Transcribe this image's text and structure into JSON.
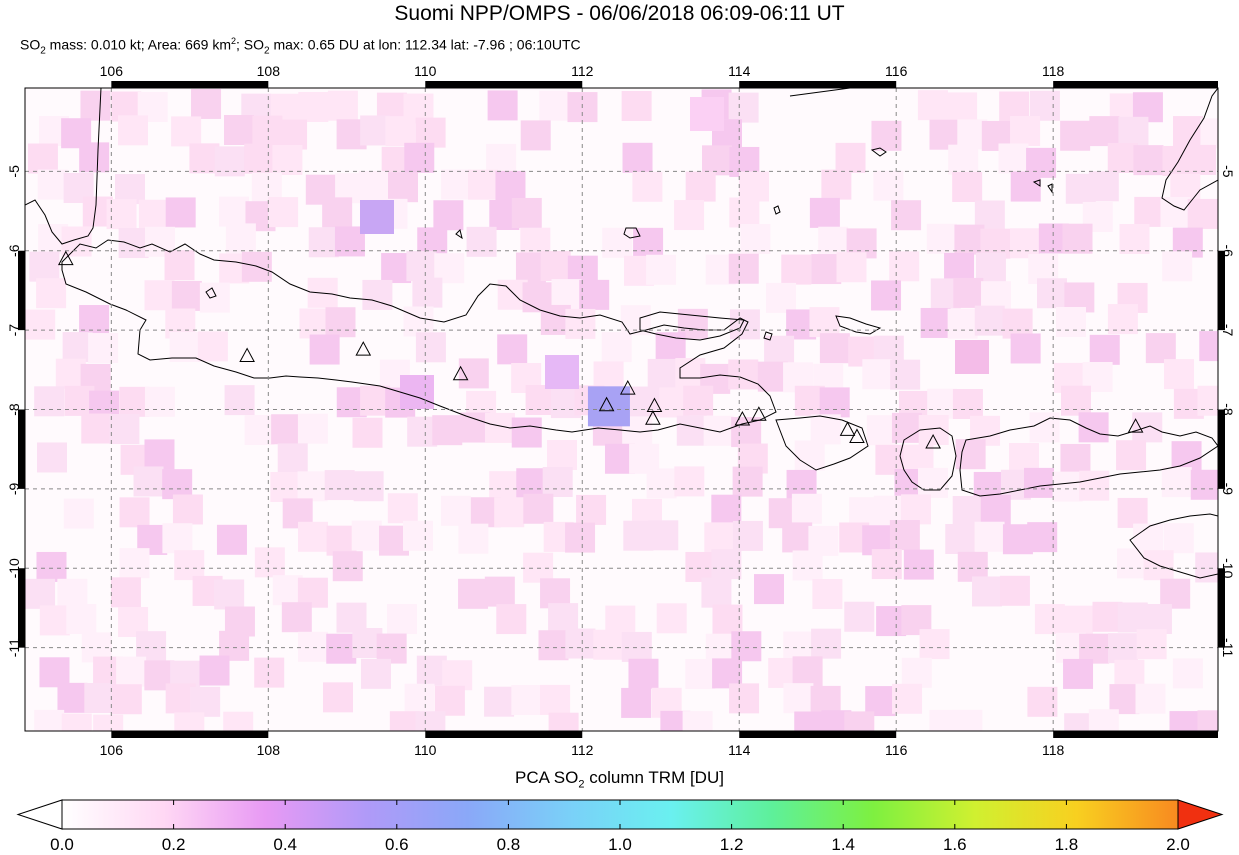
{
  "title": "Suomi NPP/OMPS - 06/06/2018 06:09-06:11 UT",
  "subtitle": {
    "so2_mass_prefix": "SO",
    "so2_mass_sub": "2",
    "so2_mass_text": " mass: 0.010 kt; Area: 669 km",
    "area_sup": "2",
    "so2_max_prefix": "; SO",
    "so2_max_sub": "2",
    "so2_max_text": " max: 0.65 DU at lon: 112.34 lat: -7.96 ; 06:10UTC"
  },
  "map": {
    "lon_ticks": [
      "106",
      "108",
      "110",
      "112",
      "114",
      "116",
      "118"
    ],
    "lat_ticks": [
      "-5",
      "-6",
      "-7",
      "-8",
      "-9",
      "-10",
      "-11"
    ],
    "lon_range": [
      104.9,
      120.1
    ],
    "lat_range": [
      -12.05,
      -3.95
    ],
    "volcanoes": [
      {
        "lon": 105.42,
        "lat": -6.1
      },
      {
        "lon": 107.73,
        "lat": -7.32
      },
      {
        "lon": 109.21,
        "lat": -7.24
      },
      {
        "lon": 110.45,
        "lat": -7.55
      },
      {
        "lon": 112.31,
        "lat": -7.94
      },
      {
        "lon": 112.58,
        "lat": -7.73
      },
      {
        "lon": 112.92,
        "lat": -7.95
      },
      {
        "lon": 112.9,
        "lat": -8.11
      },
      {
        "lon": 114.04,
        "lat": -8.12
      },
      {
        "lon": 114.25,
        "lat": -8.06
      },
      {
        "lon": 115.38,
        "lat": -8.25
      },
      {
        "lon": 115.5,
        "lat": -8.34
      },
      {
        "lon": 116.47,
        "lat": -8.41
      },
      {
        "lon": 119.05,
        "lat": -8.21
      }
    ],
    "max_pixel": {
      "lon": 112.34,
      "lat": -7.96,
      "value_du": 0.65
    }
  },
  "colorbar": {
    "title_prefix": "PCA SO",
    "title_sub": "2",
    "title_suffix": " column TRM [DU]",
    "range": [
      0.0,
      2.0
    ],
    "tick_labels": [
      "0.0",
      "0.2",
      "0.4",
      "0.6",
      "0.8",
      "1.0",
      "1.2",
      "1.4",
      "1.6",
      "1.8",
      "2.0"
    ],
    "colors": [
      "#ffffff",
      "#ffd8f4",
      "#e89af4",
      "#b09af8",
      "#8aa8f8",
      "#7ad0f8",
      "#6af0f0",
      "#5ef09a",
      "#7ef040",
      "#d0f030",
      "#f8d020",
      "#f88a20",
      "#f03010"
    ]
  }
}
